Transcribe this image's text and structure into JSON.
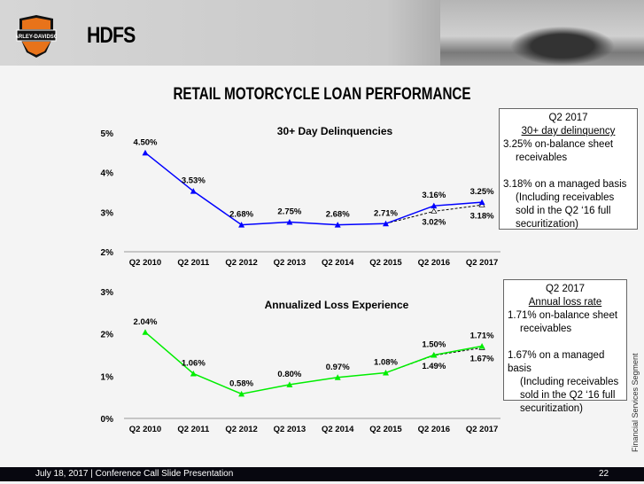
{
  "header": {
    "brand": "HDFS",
    "logo_text": "HARLEY-DAVIDSON MOTOR CYCLES",
    "title": "RETAIL MOTORCYCLE LOAN PERFORMANCE"
  },
  "chart_data": [
    {
      "type": "line",
      "title": "30+ Day Delinquencies",
      "categories": [
        "Q2 2010",
        "Q2 2011",
        "Q2 2012",
        "Q2 2013",
        "Q2 2014",
        "Q2 2015",
        "Q2 2016",
        "Q2 2017"
      ],
      "ylim": [
        2,
        5
      ],
      "yticks": [
        "2%",
        "3%",
        "4%",
        "5%"
      ],
      "color": "#0000ff",
      "series": [
        {
          "values": [
            4.5,
            3.53,
            2.68,
            2.75,
            2.68,
            2.71,
            3.16,
            3.25
          ],
          "labels": [
            "4.50%",
            "3.53%",
            "2.68%",
            "2.75%",
            "2.68%",
            "2.71%",
            "3.16%",
            "3.25%"
          ]
        }
      ],
      "managed": {
        "categories": [
          "Q2 2015",
          "Q2 2016",
          "Q2 2017"
        ],
        "values": [
          2.71,
          3.02,
          3.18
        ],
        "labels": [
          "",
          "3.02%",
          "3.18%"
        ]
      }
    },
    {
      "type": "line",
      "title": "Annualized Loss Experience",
      "categories": [
        "Q2 2010",
        "Q2 2011",
        "Q2 2012",
        "Q2 2013",
        "Q2 2014",
        "Q2 2015",
        "Q2 2016",
        "Q2 2017"
      ],
      "ylim": [
        0,
        3
      ],
      "yticks": [
        "0%",
        "1%",
        "2%",
        "3%"
      ],
      "color": "#00ee00",
      "series": [
        {
          "values": [
            2.04,
            1.06,
            0.58,
            0.8,
            0.97,
            1.08,
            1.5,
            1.71
          ],
          "labels": [
            "2.04%",
            "1.06%",
            "0.58%",
            "0.80%",
            "0.97%",
            "1.08%",
            "1.50%",
            "1.71%"
          ]
        }
      ],
      "managed": {
        "categories": [
          "Q2 2015",
          "Q2 2016",
          "Q2 2017"
        ],
        "values": [
          1.08,
          1.49,
          1.67
        ],
        "labels": [
          "",
          "1.49%",
          "1.67%"
        ]
      }
    }
  ],
  "boxes": [
    {
      "head": "Q2 2017",
      "sub": "30+ day delinquency",
      "l1": "3.25% on-balance sheet",
      "l2": "receivables",
      "l3": "3.18% on a managed basis",
      "l4": "(Including receivables",
      "l5": "sold in the Q2 ‘16 full",
      "l6": "securitization)"
    },
    {
      "head": "Q2 2017",
      "sub": "Annual loss rate",
      "l1": "1.71% on-balance sheet",
      "l2": "receivables",
      "l3": "1.67% on a managed basis",
      "l4": "(Including receivables",
      "l5": "sold in the Q2 ‘16 full",
      "l6": "securitization)"
    }
  ],
  "footer": {
    "left": "July 18, 2017 | Conference Call Slide Presentation",
    "page": "22"
  },
  "side": "Financial Services Segment"
}
